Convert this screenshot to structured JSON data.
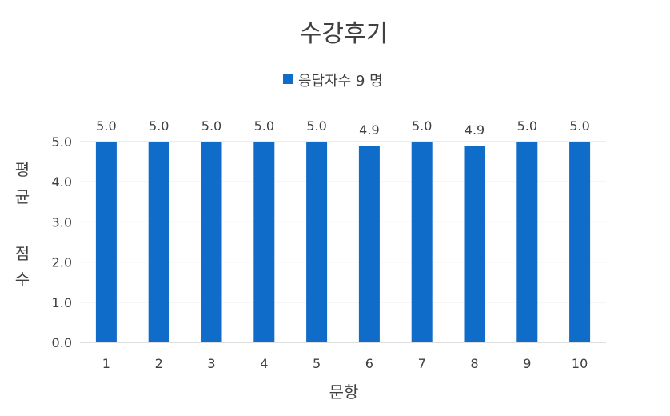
{
  "chart_data": {
    "type": "bar",
    "title": "수강후기",
    "xlabel": "문항",
    "ylabel": "평균 점수",
    "ylabel_lines": [
      "평",
      "균",
      "점",
      "수"
    ],
    "categories": [
      "1",
      "2",
      "3",
      "4",
      "5",
      "6",
      "7",
      "8",
      "9",
      "10"
    ],
    "series": [
      {
        "name": "응답자수 9 명",
        "values": [
          5.0,
          5.0,
          5.0,
          5.0,
          5.0,
          4.9,
          5.0,
          4.9,
          5.0,
          5.0
        ],
        "data_labels": [
          "5.0",
          "5.0",
          "5.0",
          "5.0",
          "5.0",
          "4.9",
          "5.0",
          "4.9",
          "5.0",
          "5.0"
        ]
      }
    ],
    "yticks": [
      "0.0",
      "1.0",
      "2.0",
      "3.0",
      "4.0",
      "5.0"
    ],
    "ylim": [
      0,
      5
    ],
    "grid": true,
    "legend_position": "top",
    "bar_color": "#0f6cc9"
  }
}
